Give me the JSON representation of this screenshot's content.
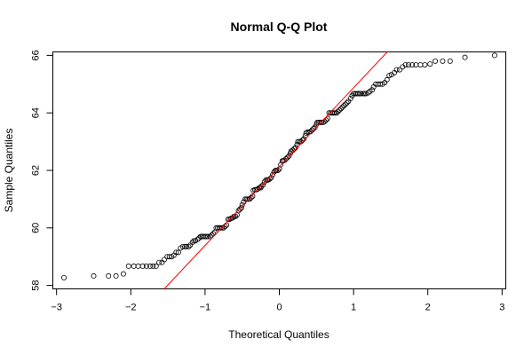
{
  "chart_data": {
    "type": "scatter",
    "title": "Normal Q-Q Plot",
    "xlabel": "Theoretical Quantiles",
    "ylabel": "Sample Quantiles",
    "xlim": [
      -3.05,
      3.05
    ],
    "ylim": [
      57.88,
      66.12
    ],
    "xticks": [
      -3,
      -2,
      -1,
      0,
      1,
      2,
      3
    ],
    "xtick_labels": [
      "−3",
      "−2",
      "−1",
      "0",
      "1",
      "2",
      "3"
    ],
    "yticks": [
      58,
      60,
      62,
      64,
      66
    ],
    "ytick_labels": [
      "58",
      "60",
      "62",
      "64",
      "66"
    ],
    "grid": false,
    "legend": "none",
    "reference_line": {
      "color": "#ff0000",
      "p1": [
        -1.55,
        57.88
      ],
      "p2": [
        1.52,
        66.3
      ]
    },
    "point_color": "#000000",
    "points": [
      [
        -2.9,
        58.27
      ],
      [
        -2.5,
        58.33
      ],
      [
        -2.3,
        58.33
      ],
      [
        -2.2,
        58.33
      ],
      [
        -2.1,
        58.4
      ],
      [
        -2.03,
        58.67
      ],
      [
        -1.96,
        58.67
      ],
      [
        -1.9,
        58.67
      ],
      [
        -1.84,
        58.67
      ],
      [
        -1.79,
        58.67
      ],
      [
        -1.74,
        58.67
      ],
      [
        -1.7,
        58.67
      ],
      [
        -1.66,
        58.67
      ],
      [
        -1.62,
        58.8
      ],
      [
        -1.58,
        58.8
      ],
      [
        -1.55,
        58.9
      ],
      [
        -1.51,
        59.0
      ],
      [
        -1.48,
        59.0
      ],
      [
        -1.45,
        59.0
      ],
      [
        -1.42,
        59.05
      ],
      [
        -1.39,
        59.15
      ],
      [
        -1.36,
        59.15
      ],
      [
        -1.33,
        59.3
      ],
      [
        -1.3,
        59.35
      ],
      [
        -1.27,
        59.35
      ],
      [
        -1.25,
        59.35
      ],
      [
        -1.22,
        59.35
      ],
      [
        -1.2,
        59.4
      ],
      [
        -1.17,
        59.5
      ],
      [
        -1.15,
        59.55
      ],
      [
        -1.13,
        59.55
      ],
      [
        -1.1,
        59.6
      ],
      [
        -1.08,
        59.65
      ],
      [
        -1.06,
        59.7
      ],
      [
        -1.04,
        59.7
      ],
      [
        -1.02,
        59.7
      ],
      [
        -1.0,
        59.7
      ],
      [
        -0.98,
        59.7
      ],
      [
        -0.96,
        59.7
      ],
      [
        -0.93,
        59.7
      ],
      [
        -0.91,
        59.75
      ],
      [
        -0.89,
        59.8
      ],
      [
        -0.87,
        59.85
      ],
      [
        -0.85,
        60.0
      ],
      [
        -0.83,
        60.0
      ],
      [
        -0.81,
        60.0
      ],
      [
        -0.79,
        60.0
      ],
      [
        -0.77,
        60.0
      ],
      [
        -0.75,
        60.0
      ],
      [
        -0.73,
        60.05
      ],
      [
        -0.71,
        60.1
      ],
      [
        -0.69,
        60.3
      ],
      [
        -0.67,
        60.3
      ],
      [
        -0.65,
        60.33
      ],
      [
        -0.63,
        60.35
      ],
      [
        -0.61,
        60.4
      ],
      [
        -0.59,
        60.4
      ],
      [
        -0.57,
        60.45
      ],
      [
        -0.55,
        60.6
      ],
      [
        -0.53,
        60.65
      ],
      [
        -0.51,
        60.7
      ],
      [
        -0.5,
        60.8
      ],
      [
        -0.48,
        60.9
      ],
      [
        -0.46,
        61.0
      ],
      [
        -0.44,
        61.0
      ],
      [
        -0.42,
        61.0
      ],
      [
        -0.4,
        61.0
      ],
      [
        -0.38,
        61.05
      ],
      [
        -0.36,
        61.1
      ],
      [
        -0.35,
        61.3
      ],
      [
        -0.33,
        61.33
      ],
      [
        -0.31,
        61.33
      ],
      [
        -0.29,
        61.35
      ],
      [
        -0.27,
        61.4
      ],
      [
        -0.25,
        61.4
      ],
      [
        -0.24,
        61.45
      ],
      [
        -0.22,
        61.5
      ],
      [
        -0.2,
        61.6
      ],
      [
        -0.18,
        61.67
      ],
      [
        -0.16,
        61.67
      ],
      [
        -0.15,
        61.67
      ],
      [
        -0.13,
        61.7
      ],
      [
        -0.11,
        61.75
      ],
      [
        -0.09,
        61.85
      ],
      [
        -0.07,
        61.95
      ],
      [
        -0.05,
        62.0
      ],
      [
        -0.04,
        62.0
      ],
      [
        -0.02,
        62.0
      ],
      [
        0.0,
        62.05
      ],
      [
        0.02,
        62.2
      ],
      [
        0.04,
        62.33
      ],
      [
        0.05,
        62.33
      ],
      [
        0.07,
        62.35
      ],
      [
        0.09,
        62.4
      ],
      [
        0.11,
        62.45
      ],
      [
        0.13,
        62.5
      ],
      [
        0.15,
        62.6
      ],
      [
        0.16,
        62.67
      ],
      [
        0.18,
        62.7
      ],
      [
        0.2,
        62.75
      ],
      [
        0.22,
        62.8
      ],
      [
        0.24,
        62.9
      ],
      [
        0.25,
        63.0
      ],
      [
        0.27,
        63.0
      ],
      [
        0.29,
        63.0
      ],
      [
        0.31,
        63.05
      ],
      [
        0.33,
        63.1
      ],
      [
        0.35,
        63.2
      ],
      [
        0.36,
        63.3
      ],
      [
        0.38,
        63.33
      ],
      [
        0.4,
        63.33
      ],
      [
        0.42,
        63.35
      ],
      [
        0.44,
        63.4
      ],
      [
        0.46,
        63.45
      ],
      [
        0.48,
        63.5
      ],
      [
        0.5,
        63.6
      ],
      [
        0.51,
        63.67
      ],
      [
        0.53,
        63.67
      ],
      [
        0.55,
        63.67
      ],
      [
        0.57,
        63.67
      ],
      [
        0.59,
        63.67
      ],
      [
        0.61,
        63.7
      ],
      [
        0.63,
        63.75
      ],
      [
        0.65,
        63.8
      ],
      [
        0.67,
        64.0
      ],
      [
        0.69,
        64.0
      ],
      [
        0.71,
        64.0
      ],
      [
        0.73,
        64.0
      ],
      [
        0.75,
        64.0
      ],
      [
        0.77,
        64.0
      ],
      [
        0.79,
        64.05
      ],
      [
        0.81,
        64.1
      ],
      [
        0.83,
        64.15
      ],
      [
        0.85,
        64.2
      ],
      [
        0.87,
        64.25
      ],
      [
        0.89,
        64.3
      ],
      [
        0.91,
        64.35
      ],
      [
        0.93,
        64.4
      ],
      [
        0.96,
        64.5
      ],
      [
        0.98,
        64.6
      ],
      [
        1.0,
        64.67
      ],
      [
        1.02,
        64.67
      ],
      [
        1.04,
        64.67
      ],
      [
        1.06,
        64.67
      ],
      [
        1.08,
        64.67
      ],
      [
        1.1,
        64.67
      ],
      [
        1.13,
        64.67
      ],
      [
        1.15,
        64.67
      ],
      [
        1.17,
        64.67
      ],
      [
        1.2,
        64.7
      ],
      [
        1.22,
        64.75
      ],
      [
        1.25,
        64.8
      ],
      [
        1.27,
        64.9
      ],
      [
        1.3,
        65.0
      ],
      [
        1.33,
        65.0
      ],
      [
        1.36,
        65.0
      ],
      [
        1.39,
        65.0
      ],
      [
        1.42,
        65.05
      ],
      [
        1.45,
        65.15
      ],
      [
        1.48,
        65.3
      ],
      [
        1.51,
        65.33
      ],
      [
        1.55,
        65.4
      ],
      [
        1.58,
        65.5
      ],
      [
        1.62,
        65.5
      ],
      [
        1.66,
        65.6
      ],
      [
        1.7,
        65.67
      ],
      [
        1.74,
        65.67
      ],
      [
        1.79,
        65.67
      ],
      [
        1.84,
        65.67
      ],
      [
        1.9,
        65.67
      ],
      [
        1.96,
        65.67
      ],
      [
        2.03,
        65.7
      ],
      [
        2.1,
        65.8
      ],
      [
        2.2,
        65.8
      ],
      [
        2.3,
        65.8
      ],
      [
        2.5,
        65.93
      ],
      [
        2.9,
        66.0
      ]
    ]
  }
}
